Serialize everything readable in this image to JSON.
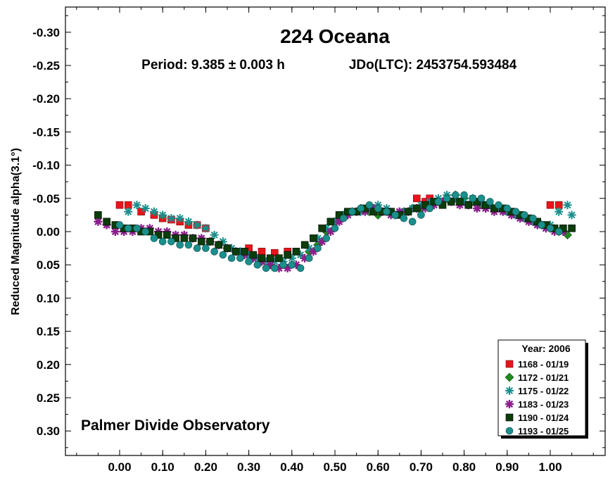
{
  "chart_data": {
    "type": "scatter",
    "title": "224 Oceana",
    "subtitle_period": "Period: 9.385 ± 0.003 h",
    "subtitle_epoch": "JDo(LTC): 2453754.593484",
    "xlabel": "",
    "ylabel": "Reduced Magnitude alpha(3.1°)",
    "annotation": "Palmer Divide Observatory",
    "xlim": [
      -0.12,
      1.12
    ],
    "ylim": [
      -0.335,
      0.335
    ],
    "y_inverted": true,
    "grid": false,
    "legend_position": "bottom-right",
    "x_ticks": [
      {
        "value": 0.0,
        "label": "0.00"
      },
      {
        "value": 0.1,
        "label": "0.10"
      },
      {
        "value": 0.2,
        "label": "0.20"
      },
      {
        "value": 0.3,
        "label": "0.30"
      },
      {
        "value": 0.4,
        "label": "0.40"
      },
      {
        "value": 0.5,
        "label": "0.50"
      },
      {
        "value": 0.6,
        "label": "0.60"
      },
      {
        "value": 0.7,
        "label": "0.70"
      },
      {
        "value": 0.8,
        "label": "0.80"
      },
      {
        "value": 0.9,
        "label": "0.90"
      },
      {
        "value": 1.0,
        "label": "1.00"
      }
    ],
    "y_ticks": [
      {
        "value": -0.3,
        "label": "-0.30"
      },
      {
        "value": -0.25,
        "label": "-0.25"
      },
      {
        "value": -0.2,
        "label": "-0.20"
      },
      {
        "value": -0.15,
        "label": "-0.15"
      },
      {
        "value": -0.1,
        "label": "-0.10"
      },
      {
        "value": -0.05,
        "label": "-0.05"
      },
      {
        "value": 0.0,
        "label": "0.00"
      },
      {
        "value": 0.05,
        "label": "0.05"
      },
      {
        "value": 0.1,
        "label": "0.10"
      },
      {
        "value": 0.15,
        "label": "0.15"
      },
      {
        "value": 0.2,
        "label": "0.20"
      },
      {
        "value": 0.25,
        "label": "0.25"
      },
      {
        "value": 0.3,
        "label": "0.30"
      }
    ],
    "legend_title": "Year: 2006",
    "series": [
      {
        "name": "1168 - 01/19",
        "marker": "square",
        "color": "#e8141b",
        "x": [
          0.0,
          0.02,
          0.05,
          0.08,
          0.1,
          0.12,
          0.14,
          0.16,
          0.18,
          0.2,
          0.3,
          0.33,
          0.36,
          0.39,
          0.69,
          0.71,
          0.72,
          1.0,
          1.02
        ],
        "y": [
          -0.04,
          -0.04,
          -0.03,
          -0.025,
          -0.02,
          -0.018,
          -0.015,
          -0.01,
          -0.01,
          -0.005,
          0.025,
          0.03,
          0.032,
          0.03,
          -0.05,
          -0.045,
          -0.05,
          -0.04,
          -0.04
        ]
      },
      {
        "name": "1172 - 01/21",
        "marker": "diamond",
        "color": "#1e8c1e",
        "x": [
          0.44,
          0.46,
          0.48,
          0.5,
          0.52,
          0.54,
          0.56,
          0.58,
          0.6,
          0.62,
          0.64,
          0.66,
          0.68,
          0.7,
          0.72,
          0.74,
          0.76,
          0.78,
          0.8,
          0.82,
          0.84,
          0.86,
          0.88,
          0.9,
          0.92,
          0.94,
          0.96,
          0.98,
          1.0,
          1.02,
          1.04
        ],
        "y": [
          0.03,
          0.02,
          0.0,
          -0.015,
          -0.025,
          -0.03,
          -0.035,
          -0.03,
          -0.025,
          -0.03,
          -0.025,
          -0.03,
          -0.035,
          -0.035,
          -0.04,
          -0.045,
          -0.05,
          -0.055,
          -0.05,
          -0.045,
          -0.04,
          -0.04,
          -0.035,
          -0.03,
          -0.025,
          -0.02,
          -0.015,
          -0.01,
          -0.005,
          0.0,
          0.005
        ]
      },
      {
        "name": "1175 - 01/22",
        "marker": "star",
        "color": "#1a8f8c",
        "x": [
          0.02,
          0.04,
          0.06,
          0.08,
          0.1,
          0.12,
          0.14,
          0.16,
          0.18,
          0.2,
          0.22,
          0.24,
          0.26,
          0.28,
          0.3,
          0.32,
          0.34,
          0.36,
          0.38,
          0.4,
          0.42,
          0.44,
          0.46,
          0.48,
          0.5,
          0.52,
          0.54,
          0.56,
          0.58,
          0.6,
          0.62,
          0.64,
          0.66,
          0.68,
          0.7,
          0.72,
          0.74,
          0.76,
          0.78,
          0.8,
          0.82,
          0.84,
          0.86,
          0.88,
          0.9,
          0.92,
          0.94,
          0.96,
          0.98,
          1.0,
          1.02,
          1.04,
          1.05
        ],
        "y": [
          -0.03,
          -0.04,
          -0.035,
          -0.03,
          -0.025,
          -0.02,
          -0.02,
          -0.015,
          -0.01,
          -0.005,
          0.005,
          0.015,
          0.025,
          0.03,
          0.035,
          0.04,
          0.045,
          0.045,
          0.045,
          0.04,
          0.035,
          0.025,
          0.01,
          -0.005,
          -0.015,
          -0.025,
          -0.03,
          -0.03,
          -0.035,
          -0.04,
          -0.035,
          -0.025,
          -0.03,
          -0.035,
          -0.04,
          -0.045,
          -0.05,
          -0.055,
          -0.05,
          -0.045,
          -0.05,
          -0.045,
          -0.04,
          -0.035,
          -0.03,
          -0.025,
          -0.02,
          -0.015,
          -0.01,
          -0.01,
          -0.03,
          -0.04,
          -0.025
        ]
      },
      {
        "name": "1183 - 01/23",
        "marker": "asterisk",
        "color": "#8a1e8a",
        "x": [
          -0.05,
          -0.03,
          -0.01,
          0.01,
          0.03,
          0.05,
          0.07,
          0.09,
          0.11,
          0.13,
          0.15,
          0.17,
          0.19,
          0.21,
          0.23,
          0.25,
          0.27,
          0.29,
          0.31,
          0.33,
          0.35,
          0.37,
          0.39,
          0.41,
          0.43,
          0.45,
          0.47,
          0.49,
          0.51,
          0.53,
          0.55,
          0.57,
          0.59,
          0.61,
          0.63,
          0.65,
          0.67,
          0.69,
          0.71,
          0.73,
          0.75,
          0.77,
          0.79,
          0.81,
          0.83,
          0.85,
          0.87,
          0.89,
          0.91,
          0.93,
          0.95,
          0.97,
          0.99,
          1.01,
          1.03
        ],
        "y": [
          -0.015,
          -0.01,
          0.0,
          0.0,
          0.0,
          -0.005,
          -0.005,
          0.0,
          0.0,
          0.005,
          0.005,
          0.01,
          0.01,
          0.015,
          0.02,
          0.025,
          0.03,
          0.035,
          0.04,
          0.045,
          0.05,
          0.055,
          0.055,
          0.05,
          0.04,
          0.03,
          0.015,
          0.0,
          -0.015,
          -0.025,
          -0.03,
          -0.03,
          -0.035,
          -0.03,
          -0.025,
          -0.03,
          -0.03,
          -0.035,
          -0.035,
          -0.04,
          -0.045,
          -0.045,
          -0.04,
          -0.04,
          -0.035,
          -0.035,
          -0.03,
          -0.03,
          -0.025,
          -0.02,
          -0.015,
          -0.01,
          -0.005,
          0.0,
          0.0
        ]
      },
      {
        "name": "1190 - 01/24",
        "marker": "filled-square",
        "color": "#0a3d0a",
        "x": [
          -0.05,
          -0.03,
          -0.01,
          0.01,
          0.03,
          0.05,
          0.07,
          0.09,
          0.11,
          0.13,
          0.15,
          0.17,
          0.19,
          0.21,
          0.23,
          0.25,
          0.27,
          0.29,
          0.31,
          0.33,
          0.35,
          0.37,
          0.39,
          0.41,
          0.43,
          0.45,
          0.47,
          0.49,
          0.51,
          0.53,
          0.55,
          0.57,
          0.59,
          0.61,
          0.63,
          0.65,
          0.67,
          0.69,
          0.71,
          0.73,
          0.75,
          0.77,
          0.79,
          0.81,
          0.83,
          0.85,
          0.87,
          0.89,
          0.91,
          0.93,
          0.95,
          0.97,
          0.99,
          1.01,
          1.03,
          1.05
        ],
        "y": [
          -0.025,
          -0.015,
          -0.01,
          -0.005,
          -0.005,
          0.0,
          0.0,
          0.005,
          0.005,
          0.01,
          0.01,
          0.01,
          0.015,
          0.015,
          0.02,
          0.025,
          0.03,
          0.03,
          0.035,
          0.04,
          0.04,
          0.04,
          0.035,
          0.03,
          0.02,
          0.01,
          -0.005,
          -0.015,
          -0.025,
          -0.03,
          -0.03,
          -0.035,
          -0.03,
          -0.03,
          -0.03,
          -0.025,
          -0.03,
          -0.035,
          -0.04,
          -0.045,
          -0.04,
          -0.045,
          -0.045,
          -0.04,
          -0.045,
          -0.04,
          -0.035,
          -0.035,
          -0.03,
          -0.025,
          -0.02,
          -0.015,
          -0.01,
          -0.005,
          -0.005,
          -0.005
        ]
      },
      {
        "name": "1193 - 01/25",
        "marker": "circle",
        "color": "#1a8f8c",
        "x": [
          0.0,
          0.02,
          0.04,
          0.06,
          0.08,
          0.1,
          0.12,
          0.14,
          0.16,
          0.18,
          0.2,
          0.22,
          0.24,
          0.26,
          0.28,
          0.3,
          0.32,
          0.34,
          0.36,
          0.38,
          0.4,
          0.42,
          0.44,
          0.46,
          0.48,
          0.5,
          0.52,
          0.54,
          0.56,
          0.58,
          0.6,
          0.62,
          0.64,
          0.66,
          0.68,
          0.7,
          0.72,
          0.74,
          0.76,
          0.78,
          0.8,
          0.82,
          0.84,
          0.86,
          0.88,
          0.9,
          0.92,
          0.94,
          0.96,
          0.98,
          1.0,
          1.02
        ],
        "y": [
          -0.01,
          -0.005,
          -0.005,
          0.0,
          0.01,
          0.015,
          0.015,
          0.02,
          0.02,
          0.025,
          0.025,
          0.03,
          0.035,
          0.04,
          0.04,
          0.045,
          0.05,
          0.055,
          0.055,
          0.05,
          0.05,
          0.055,
          0.04,
          0.025,
          0.01,
          -0.005,
          -0.02,
          -0.03,
          -0.035,
          -0.04,
          -0.035,
          -0.03,
          -0.025,
          -0.02,
          -0.015,
          -0.025,
          -0.035,
          -0.045,
          -0.05,
          -0.055,
          -0.055,
          -0.05,
          -0.05,
          -0.045,
          -0.04,
          -0.035,
          -0.03,
          -0.025,
          -0.02,
          -0.01,
          -0.005,
          0.0
        ]
      }
    ]
  }
}
